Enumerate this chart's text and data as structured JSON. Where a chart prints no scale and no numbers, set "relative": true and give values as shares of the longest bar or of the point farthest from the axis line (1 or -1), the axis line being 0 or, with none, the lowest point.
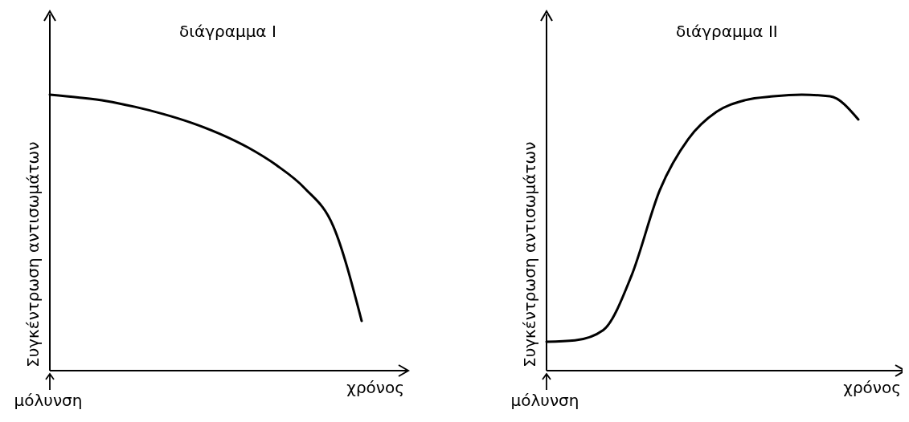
{
  "chart_data": [
    {
      "type": "line",
      "title": "διάγραμμα I",
      "xlabel": "χρόνος",
      "ylabel": "Συγκέντρωση αντισωμάτων",
      "relative": true,
      "annotations": [
        "μόλυνση"
      ],
      "categories": [
        null,
        null,
        null,
        null,
        null,
        null,
        null,
        null,
        null,
        null,
        null,
        null
      ],
      "series": [
        {
          "color": "#000000",
          "values": [
            1,
            0.99,
            0.977,
            0.956,
            0.93,
            0.898,
            0.858,
            0.808,
            0.744,
            0.66,
            0.523,
            0.18
          ]
        }
      ]
    },
    {
      "type": "line",
      "title": "διάγραμμα II",
      "xlabel": "χρόνος",
      "ylabel": "Συγκέντρωση αντισωμάτων",
      "relative": true,
      "annotations": [
        "μόλυνση"
      ],
      "categories": [
        null,
        null,
        null,
        null,
        null,
        null,
        null,
        null,
        null,
        null,
        null,
        null
      ],
      "series": [
        {
          "color": "#000000",
          "values": [
            0.105,
            0.11,
            0.147,
            0.345,
            0.655,
            0.839,
            0.938,
            0.98,
            0.994,
            1,
            0.994,
            0.91
          ]
        }
      ]
    }
  ]
}
